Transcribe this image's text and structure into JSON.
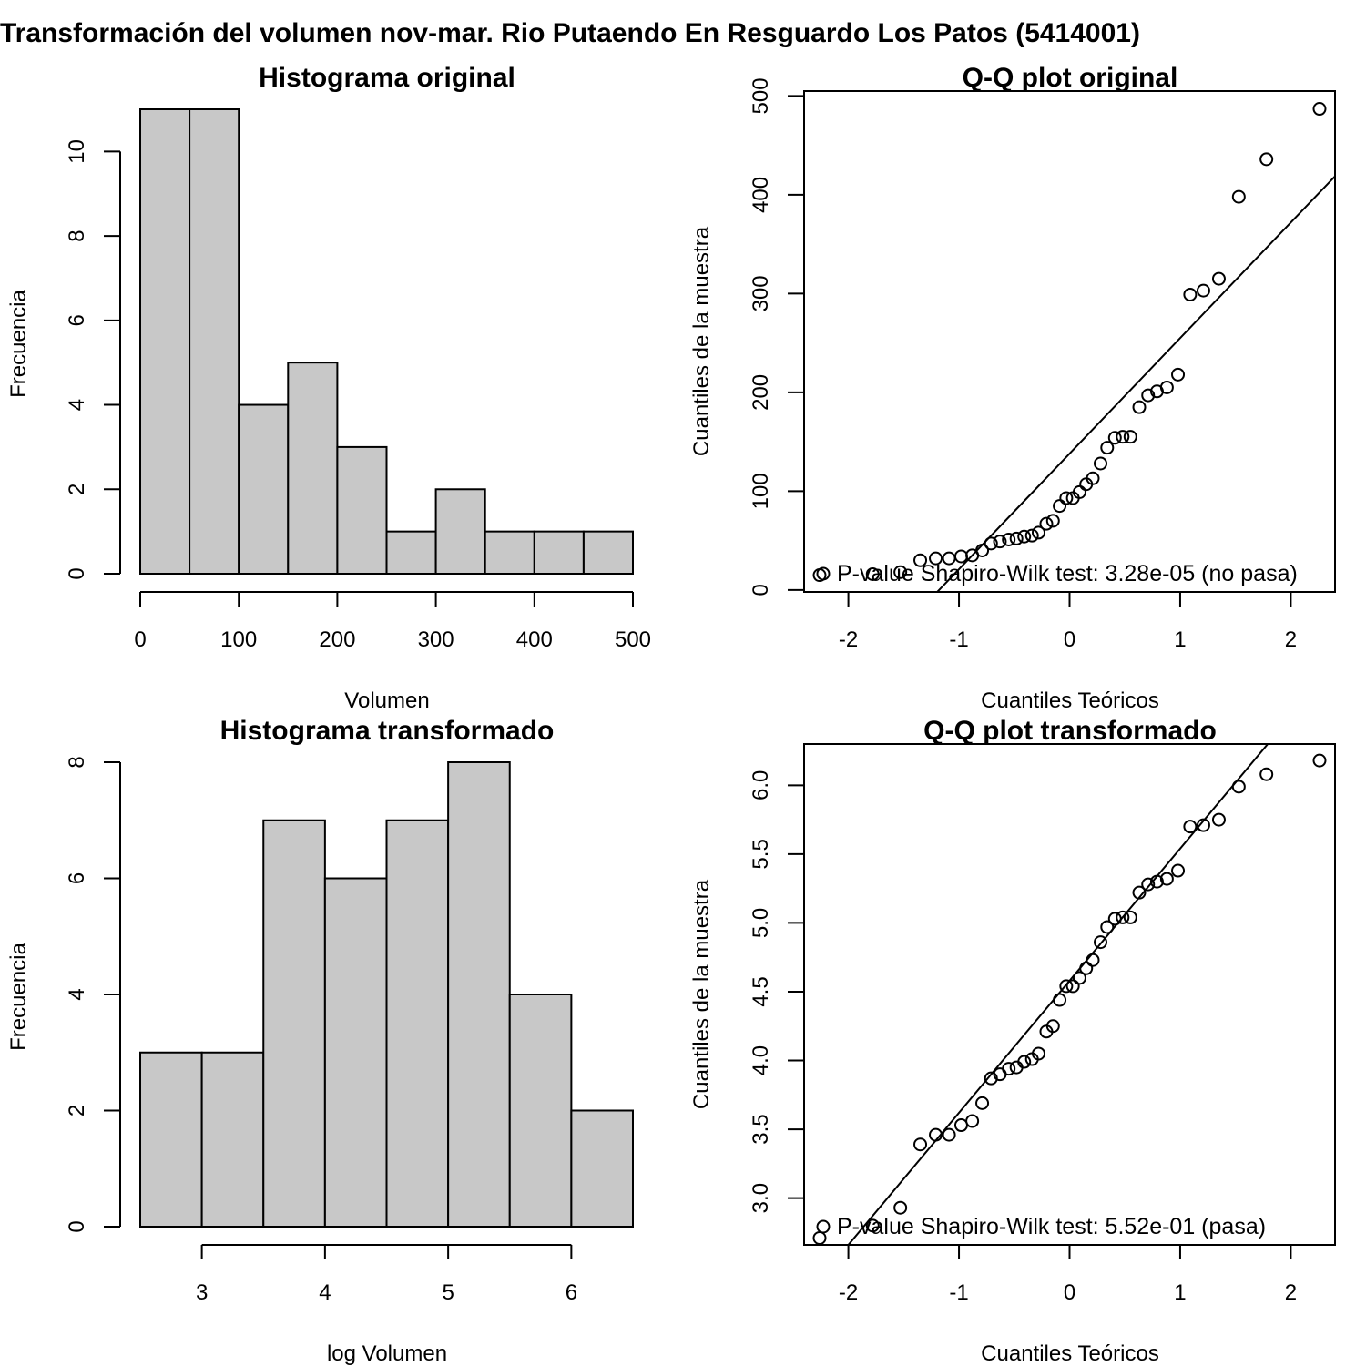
{
  "figure": {
    "title": "Transformación del volumen nov-mar. Rio Putaendo En Resguardo Los Patos (5414001)"
  },
  "chart_data": [
    {
      "id": "hist-original",
      "type": "bar",
      "title": "Histograma original",
      "xlabel": "Volumen",
      "ylabel": "Frecuencia",
      "bins": [
        [
          0,
          50
        ],
        [
          50,
          100
        ],
        [
          100,
          150
        ],
        [
          150,
          200
        ],
        [
          200,
          250
        ],
        [
          250,
          300
        ],
        [
          300,
          350
        ],
        [
          350,
          400
        ],
        [
          400,
          450
        ],
        [
          450,
          500
        ]
      ],
      "values": [
        11,
        11,
        4,
        5,
        3,
        1,
        2,
        1,
        1,
        1
      ],
      "xlim": [
        0,
        500
      ],
      "ylim": [
        0,
        11
      ],
      "xticks": [
        0,
        100,
        200,
        300,
        400,
        500
      ],
      "yticks": [
        0,
        2,
        4,
        6,
        8,
        10
      ],
      "bar_color": "#c8c8c8"
    },
    {
      "id": "qq-original",
      "type": "scatter",
      "title": "Q-Q plot original",
      "xlabel": "Cuantiles Teóricos",
      "ylabel": "Cuantiles de la muestra",
      "xlim": [
        -2.4,
        2.4
      ],
      "ylim": [
        -2,
        505
      ],
      "xticks": [
        -2,
        -1,
        0,
        1,
        2
      ],
      "yticks": [
        0,
        100,
        200,
        300,
        400,
        500
      ],
      "points": [
        [
          -2.26,
          15
        ],
        [
          -1.78,
          16
        ],
        [
          -1.53,
          18
        ],
        [
          -1.35,
          30
        ],
        [
          -1.21,
          32
        ],
        [
          -1.09,
          32
        ],
        [
          -0.98,
          34
        ],
        [
          -0.88,
          35
        ],
        [
          -0.79,
          40
        ],
        [
          -0.71,
          47
        ],
        [
          -0.63,
          49
        ],
        [
          -0.55,
          51
        ],
        [
          -0.48,
          52
        ],
        [
          -0.41,
          54
        ],
        [
          -0.34,
          55
        ],
        [
          -0.28,
          58
        ],
        [
          -0.21,
          67
        ],
        [
          -0.15,
          70
        ],
        [
          -0.09,
          85
        ],
        [
          -0.03,
          93
        ],
        [
          0.03,
          93
        ],
        [
          0.09,
          99
        ],
        [
          0.15,
          107
        ],
        [
          0.21,
          113
        ],
        [
          0.28,
          128
        ],
        [
          0.34,
          144
        ],
        [
          0.41,
          154
        ],
        [
          0.48,
          155
        ],
        [
          0.55,
          155
        ],
        [
          0.63,
          185
        ],
        [
          0.71,
          197
        ],
        [
          0.79,
          201
        ],
        [
          0.88,
          205
        ],
        [
          0.98,
          218
        ],
        [
          1.09,
          299
        ],
        [
          1.21,
          303
        ],
        [
          1.35,
          315
        ],
        [
          1.53,
          398
        ],
        [
          1.78,
          436
        ],
        [
          2.26,
          487
        ]
      ],
      "line": {
        "intercept": 138,
        "slope": 117
      },
      "legend": {
        "position": "bottomleft",
        "text": "P-value Shapiro-Wilk test: 3.28e-05 (no pasa)"
      }
    },
    {
      "id": "hist-transformado",
      "type": "bar",
      "title": "Histograma transformado",
      "xlabel": "log Volumen",
      "ylabel": "Frecuencia",
      "bins": [
        [
          2.5,
          3.0
        ],
        [
          3.0,
          3.5
        ],
        [
          3.5,
          4.0
        ],
        [
          4.0,
          4.5
        ],
        [
          4.5,
          5.0
        ],
        [
          5.0,
          5.5
        ],
        [
          5.5,
          6.0
        ],
        [
          6.0,
          6.5
        ]
      ],
      "values": [
        3,
        3,
        7,
        6,
        7,
        8,
        4,
        2
      ],
      "xlim": [
        2.5,
        6.5
      ],
      "ylim": [
        0,
        8
      ],
      "xticks": [
        3,
        4,
        5,
        6
      ],
      "yticks": [
        0,
        2,
        4,
        6,
        8
      ],
      "bar_color": "#c8c8c8"
    },
    {
      "id": "qq-transformado",
      "type": "scatter",
      "title": "Q-Q plot transformado",
      "xlabel": "Cuantiles Teóricos",
      "ylabel": "Cuantiles de la muestra",
      "xlim": [
        -2.4,
        2.4
      ],
      "ylim": [
        2.66,
        6.3
      ],
      "xticks": [
        -2,
        -1,
        0,
        1,
        2
      ],
      "yticks": [
        3.0,
        3.5,
        4.0,
        4.5,
        5.0,
        5.5,
        6.0
      ],
      "ytick_labels": [
        "3.0",
        "3.5",
        "4.0",
        "4.5",
        "5.0",
        "5.5",
        "6.0"
      ],
      "points": [
        [
          -2.26,
          2.71
        ],
        [
          -1.78,
          2.8
        ],
        [
          -1.53,
          2.93
        ],
        [
          -1.35,
          3.39
        ],
        [
          -1.21,
          3.46
        ],
        [
          -1.09,
          3.46
        ],
        [
          -0.98,
          3.53
        ],
        [
          -0.88,
          3.56
        ],
        [
          -0.79,
          3.69
        ],
        [
          -0.71,
          3.87
        ],
        [
          -0.63,
          3.9
        ],
        [
          -0.55,
          3.94
        ],
        [
          -0.48,
          3.95
        ],
        [
          -0.41,
          3.99
        ],
        [
          -0.34,
          4.01
        ],
        [
          -0.28,
          4.05
        ],
        [
          -0.21,
          4.21
        ],
        [
          -0.15,
          4.25
        ],
        [
          -0.09,
          4.44
        ],
        [
          -0.03,
          4.54
        ],
        [
          0.03,
          4.54
        ],
        [
          0.09,
          4.6
        ],
        [
          0.15,
          4.67
        ],
        [
          0.21,
          4.73
        ],
        [
          0.28,
          4.86
        ],
        [
          0.34,
          4.97
        ],
        [
          0.41,
          5.03
        ],
        [
          0.48,
          5.04
        ],
        [
          0.55,
          5.04
        ],
        [
          0.63,
          5.22
        ],
        [
          0.71,
          5.28
        ],
        [
          0.79,
          5.3
        ],
        [
          0.88,
          5.32
        ],
        [
          0.98,
          5.38
        ],
        [
          1.09,
          5.7
        ],
        [
          1.21,
          5.71
        ],
        [
          1.35,
          5.75
        ],
        [
          1.53,
          5.99
        ],
        [
          1.78,
          6.08
        ],
        [
          2.26,
          6.18
        ]
      ],
      "line": {
        "intercept": 4.58,
        "slope": 0.96
      },
      "legend": {
        "position": "bottomleft",
        "text": "P-value Shapiro-Wilk test: 5.52e-01 (pasa)"
      }
    }
  ]
}
